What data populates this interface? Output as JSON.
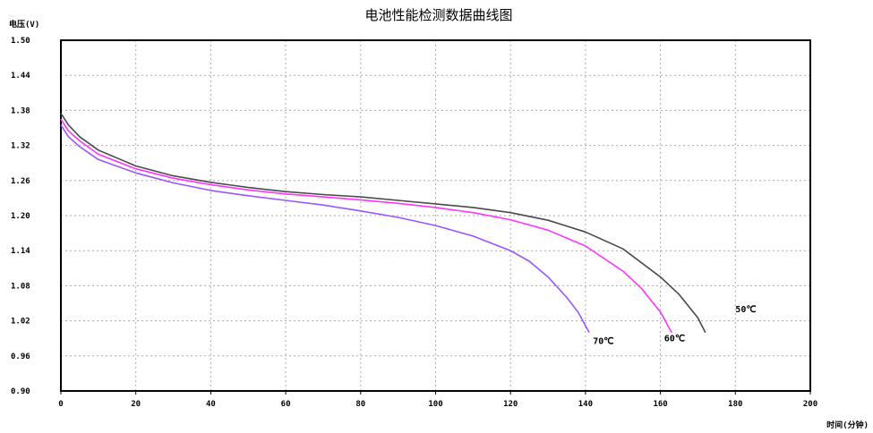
{
  "chart_data": {
    "type": "line",
    "title": "电池性能检测数据曲线图",
    "ylabel": "电压(V)",
    "xlabel": "时间(分钟)",
    "xlim": [
      0,
      200
    ],
    "ylim": [
      0.9,
      1.5
    ],
    "xticks": [
      "0",
      "20",
      "40",
      "60",
      "80",
      "100",
      "120",
      "140",
      "160",
      "180",
      "200"
    ],
    "yticks": [
      "0.90",
      "0.96",
      "1.02",
      "1.08",
      "1.14",
      "1.20",
      "1.26",
      "1.32",
      "1.38",
      "1.44",
      "1.50"
    ],
    "grid": true,
    "series": [
      {
        "name": "50℃",
        "color": "#4a4a4a",
        "x": [
          0,
          2,
          5,
          10,
          20,
          30,
          40,
          50,
          60,
          70,
          80,
          90,
          100,
          110,
          120,
          130,
          140,
          150,
          160,
          165,
          170,
          172
        ],
        "y": [
          1.375,
          1.355,
          1.335,
          1.312,
          1.285,
          1.268,
          1.257,
          1.248,
          1.241,
          1.236,
          1.232,
          1.226,
          1.22,
          1.214,
          1.205,
          1.192,
          1.172,
          1.143,
          1.095,
          1.065,
          1.025,
          1.0
        ]
      },
      {
        "name": "60℃",
        "color": "#ff33ff",
        "x": [
          0,
          2,
          5,
          10,
          20,
          30,
          40,
          50,
          60,
          70,
          80,
          90,
          100,
          110,
          120,
          130,
          140,
          150,
          155,
          160,
          163
        ],
        "y": [
          1.365,
          1.345,
          1.328,
          1.305,
          1.28,
          1.264,
          1.253,
          1.244,
          1.237,
          1.232,
          1.227,
          1.221,
          1.214,
          1.205,
          1.193,
          1.175,
          1.148,
          1.105,
          1.075,
          1.035,
          1.0
        ]
      },
      {
        "name": "70℃",
        "color": "#9955ff",
        "x": [
          0,
          2,
          5,
          10,
          20,
          30,
          40,
          50,
          60,
          70,
          80,
          90,
          100,
          110,
          120,
          125,
          130,
          135,
          138,
          141
        ],
        "y": [
          1.355,
          1.335,
          1.318,
          1.296,
          1.273,
          1.256,
          1.243,
          1.234,
          1.226,
          1.218,
          1.208,
          1.197,
          1.183,
          1.165,
          1.14,
          1.122,
          1.095,
          1.06,
          1.035,
          1.0
        ]
      }
    ],
    "series_labels": [
      {
        "text": "50℃",
        "x": 180,
        "y": 1.035
      },
      {
        "text": "60℃",
        "x": 161,
        "y": 0.985
      },
      {
        "text": "70℃",
        "x": 142,
        "y": 0.98
      }
    ]
  }
}
